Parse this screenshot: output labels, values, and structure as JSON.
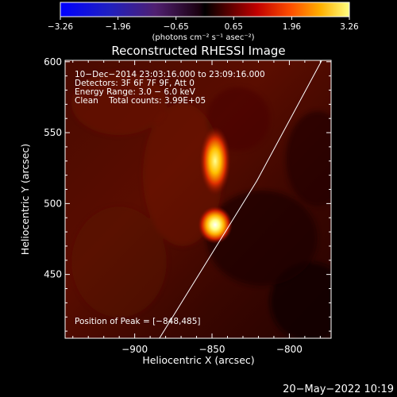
{
  "chart_data": {
    "type": "heatmap",
    "title": "Reconstructed RHESSI Image",
    "xlabel": "Heliocentric X (arcsec)",
    "ylabel": "Heliocentric Y (arcsec)",
    "xlim": [
      -945,
      -773
    ],
    "ylim": [
      405,
      601
    ],
    "x_ticks": [
      -900,
      -850,
      -800
    ],
    "x_tick_labels": [
      "−900",
      "−850",
      "−800"
    ],
    "y_ticks": [
      450,
      500,
      550,
      600
    ],
    "y_tick_labels": [
      "450",
      "500",
      "550",
      "600"
    ],
    "colorbar": {
      "range": [
        -3.26,
        3.26
      ],
      "ticks": [
        -3.26,
        -1.96,
        -0.65,
        0.65,
        1.96,
        3.26
      ],
      "tick_labels": [
        "−3.26",
        "−1.96",
        "−0.65",
        "0.65",
        "1.96",
        "3.26"
      ],
      "unit_label": "(photons cm⁻² s⁻¹ asec⁻²)"
    },
    "annotations": [
      "10−Dec−2014 23:03:16.000 to 23:09:16.000",
      "Detectors: 3F 6F 7F 9F, Att 0",
      "Energy Range: 3.0 − 6.0 keV",
      "Clean    Total counts: 3.99E+05"
    ],
    "peak_label": "Position of Peak = [−848,485]",
    "sources": [
      {
        "x": -848,
        "y": 485,
        "peak": 3.26
      },
      {
        "x": -848,
        "y": 530,
        "peak": 2.9
      }
    ],
    "limb_line": [
      [
        -884,
        405
      ],
      [
        -821,
        516
      ],
      [
        -779,
        601
      ]
    ]
  },
  "footer": {
    "timestamp": "20−May−2022 10:19"
  }
}
